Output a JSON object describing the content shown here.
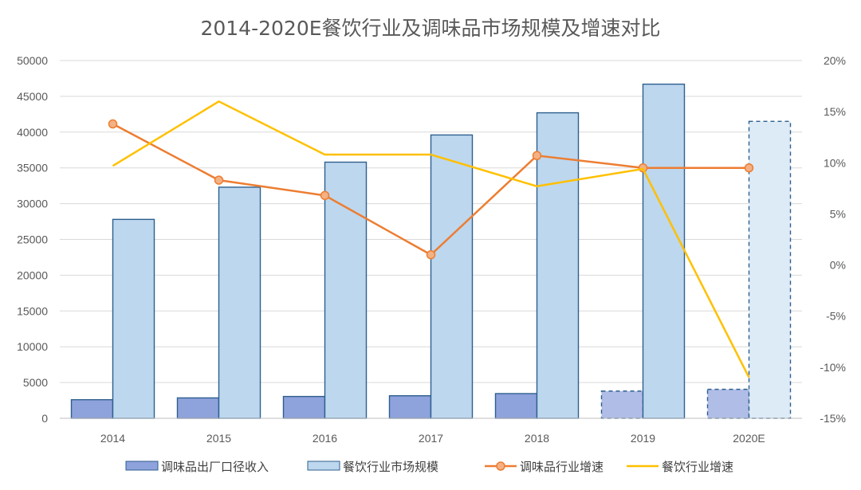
{
  "chart_data": {
    "type": "bar",
    "title": "2014-2020E餐饮行业及调味品市场规模及增速对比",
    "categories": [
      "2014",
      "2015",
      "2016",
      "2017",
      "2018",
      "2019",
      "2020E"
    ],
    "y_left": {
      "min": 0,
      "max": 50000,
      "ticks": [
        "0",
        "5000",
        "10000",
        "15000",
        "20000",
        "25000",
        "30000",
        "35000",
        "40000",
        "45000",
        "50000"
      ]
    },
    "y_right": {
      "min": -15,
      "max": 20,
      "ticks": [
        "-15%",
        "-10%",
        "-5%",
        "0%",
        "5%",
        "10%",
        "15%",
        "20%"
      ]
    },
    "grid": true,
    "legend_position": "bottom",
    "series": [
      {
        "name": "调味品出厂口径收入",
        "kind": "bar",
        "axis": "left",
        "color": "#8ea2dc",
        "values": [
          2600,
          2850,
          3050,
          3150,
          3450,
          3800,
          4050
        ],
        "estimated": [
          false,
          false,
          false,
          false,
          false,
          true,
          true
        ]
      },
      {
        "name": "餐饮行业市场规模",
        "kind": "bar",
        "axis": "left",
        "color": "#bdd7ee",
        "values": [
          27800,
          32300,
          35800,
          39600,
          42700,
          46700,
          41500
        ],
        "estimated": [
          false,
          false,
          false,
          false,
          false,
          false,
          true
        ]
      },
      {
        "name": "调味品行业增速",
        "kind": "line",
        "axis": "right",
        "color": "#ed7d31",
        "marker": "circle",
        "values": [
          13.8,
          8.3,
          6.8,
          1.0,
          10.7,
          9.5,
          9.5
        ]
      },
      {
        "name": "餐饮行业增速",
        "kind": "line",
        "axis": "right",
        "color": "#ffc000",
        "marker": "none",
        "values": [
          9.7,
          16.0,
          10.8,
          10.8,
          7.7,
          9.4,
          -11.0
        ]
      }
    ]
  }
}
